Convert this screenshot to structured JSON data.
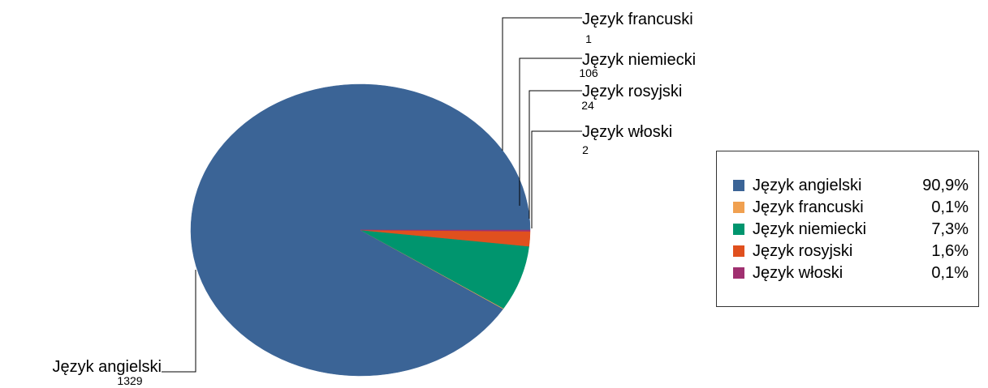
{
  "chart_data": {
    "type": "pie",
    "title": "",
    "start_angle_deg": 0,
    "direction": "counterclockwise",
    "slices": [
      {
        "label": "Język angielski",
        "value": 1329,
        "percent": "90,9%",
        "color": "#3b6496"
      },
      {
        "label": "Język francuski",
        "value": 1,
        "percent": "0,1%",
        "color": "#f0a050"
      },
      {
        "label": "Język niemiecki",
        "value": 106,
        "percent": "7,3%",
        "color": "#00956e"
      },
      {
        "label": "Język rosyjski",
        "value": 24,
        "percent": "1,6%",
        "color": "#e0501e"
      },
      {
        "label": "Język włoski",
        "value": 2,
        "percent": "0,1%",
        "color": "#a03070"
      }
    ],
    "legend_position": "right"
  }
}
